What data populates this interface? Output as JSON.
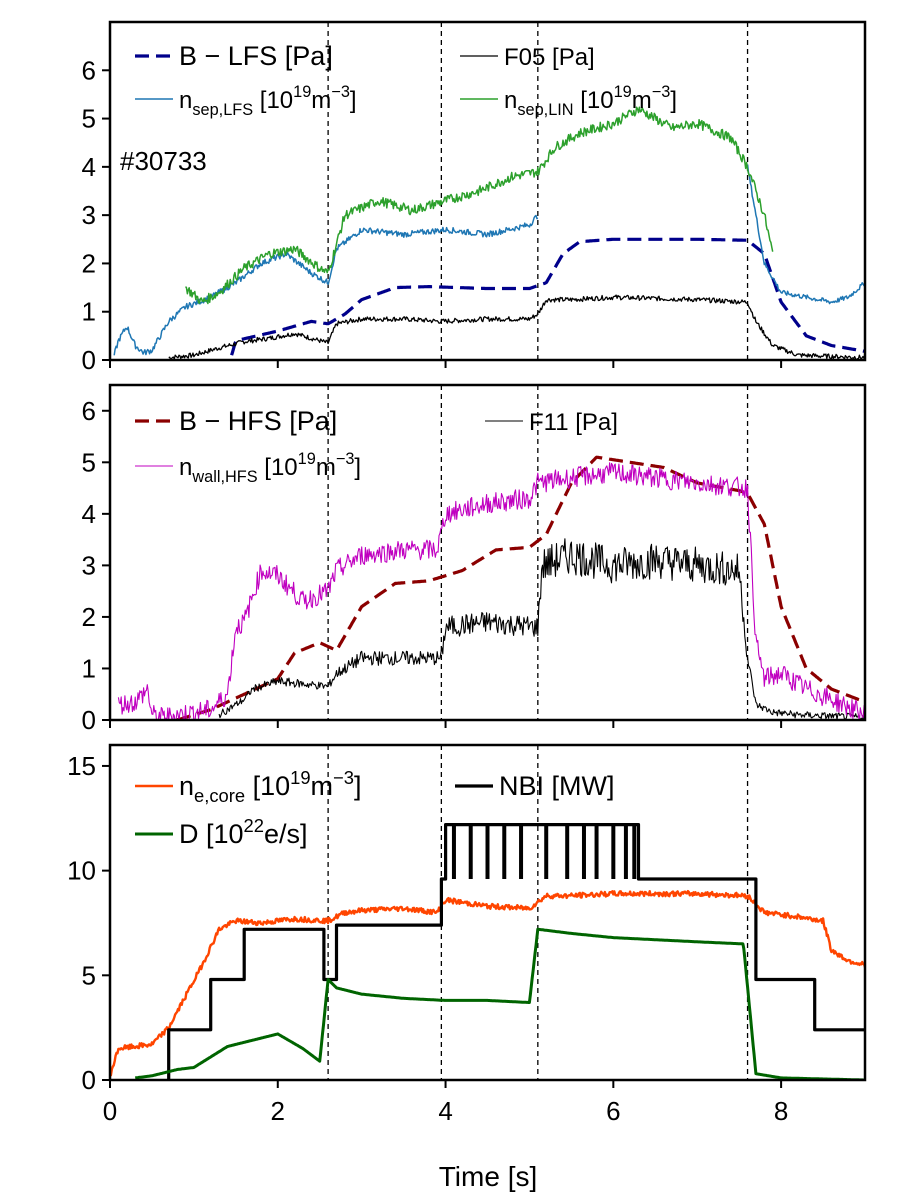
{
  "figure": {
    "xlabel": "Time [s]",
    "shot_label": "#30733",
    "events_s": [
      2.6,
      3.95,
      5.1,
      7.6
    ]
  },
  "chart_data": [
    {
      "type": "line",
      "panel": "top",
      "xlim": [
        0,
        9
      ],
      "ylim": [
        0,
        7
      ],
      "yticks": [
        0,
        1,
        2,
        3,
        4,
        5,
        6
      ],
      "xticks": [
        0,
        2,
        4,
        6,
        8
      ],
      "legend": [
        {
          "label": "B − LFS [Pa]",
          "series": "B-LFS"
        },
        {
          "label": "F05 [Pa]",
          "series": "F05"
        },
        {
          "label": "n",
          "sub": "sep,LFS",
          "tail": " [10",
          "sup": "19",
          "tail2": "m",
          "sup2": "−3",
          "tail3": "]",
          "series": "n_sep_LFS"
        },
        {
          "label": "n",
          "sub": "sep,LIN",
          "tail": " [10",
          "sup": "19",
          "tail2": "m",
          "sup2": "−3",
          "tail3": "]",
          "series": "n_sep_LIN"
        }
      ],
      "series": [
        {
          "key": "B-LFS",
          "color": "#00008b",
          "style": "dashed",
          "width": 3.2,
          "x": [
            1.45,
            1.5,
            2.0,
            2.4,
            2.6,
            2.8,
            3.0,
            3.4,
            3.8,
            4.5,
            5.0,
            5.2,
            5.4,
            5.6,
            6.0,
            7.0,
            7.6,
            7.8,
            8.0,
            8.3,
            8.6,
            9.0
          ],
          "y": [
            0.1,
            0.4,
            0.6,
            0.8,
            0.75,
            0.95,
            1.25,
            1.5,
            1.52,
            1.48,
            1.48,
            1.6,
            2.2,
            2.45,
            2.5,
            2.5,
            2.48,
            2.2,
            1.2,
            0.5,
            0.3,
            0.18
          ]
        },
        {
          "key": "F05",
          "color": "#000000",
          "style": "solid",
          "width": 1.3,
          "noise": 0.05,
          "x": [
            0.7,
            1.0,
            1.3,
            1.6,
            1.9,
            2.2,
            2.6,
            2.7,
            3.0,
            3.5,
            3.95,
            4.5,
            5.0,
            5.1,
            5.2,
            5.5,
            6.0,
            7.0,
            7.6,
            7.7,
            7.9,
            8.2,
            9.0
          ],
          "y": [
            0.05,
            0.1,
            0.25,
            0.38,
            0.45,
            0.55,
            0.35,
            0.75,
            0.85,
            0.85,
            0.8,
            0.85,
            0.85,
            0.95,
            1.25,
            1.25,
            1.3,
            1.25,
            1.2,
            0.8,
            0.3,
            0.1,
            0.05
          ]
        },
        {
          "key": "n_sep_LFS",
          "color": "#1f77b4",
          "style": "solid",
          "width": 1.5,
          "noise": 0.06,
          "x": [
            0.05,
            0.1,
            0.2,
            0.3,
            0.4,
            0.5,
            0.7,
            0.9,
            1.2,
            1.5,
            1.8,
            2.1,
            2.4,
            2.6,
            2.7,
            3.0,
            3.5,
            4.0,
            4.5,
            5.0,
            5.1
          ],
          "y": [
            0.1,
            0.4,
            0.7,
            0.3,
            0.15,
            0.2,
            0.8,
            1.1,
            1.3,
            1.6,
            2.0,
            2.2,
            1.8,
            1.6,
            2.3,
            2.7,
            2.6,
            2.7,
            2.6,
            2.8,
            3.0
          ]
        },
        {
          "key": "n_sep_LFS_tail",
          "color": "#1f77b4",
          "style": "solid",
          "width": 1.5,
          "noise": 0.05,
          "x": [
            7.6,
            7.7,
            7.8,
            8.0,
            8.3,
            8.6,
            8.8,
            9.0
          ],
          "y": [
            4.0,
            3.0,
            2.0,
            1.4,
            1.3,
            1.2,
            1.3,
            1.6
          ]
        },
        {
          "key": "n_sep_LIN",
          "color": "#2ca02c",
          "style": "solid",
          "width": 1.5,
          "noise": 0.1,
          "x": [
            0.9,
            1.1,
            1.3,
            1.6,
            1.9,
            2.2,
            2.5,
            2.6,
            2.8,
            3.2,
            3.6,
            4.0,
            4.4,
            4.8,
            5.1,
            5.3,
            5.6,
            6.0,
            6.3,
            6.7,
            7.0,
            7.4,
            7.6,
            7.8,
            7.9
          ],
          "y": [
            1.5,
            1.2,
            1.4,
            1.9,
            2.2,
            2.3,
            1.9,
            1.8,
            3.0,
            3.3,
            3.1,
            3.3,
            3.5,
            3.8,
            3.9,
            4.4,
            4.7,
            4.9,
            5.2,
            4.8,
            4.9,
            4.6,
            4.0,
            3.0,
            2.2
          ]
        }
      ]
    },
    {
      "type": "line",
      "panel": "middle",
      "xlim": [
        0,
        9
      ],
      "ylim": [
        0,
        6.5
      ],
      "yticks": [
        0,
        1,
        2,
        3,
        4,
        5,
        6
      ],
      "xticks": [
        0,
        2,
        4,
        6,
        8
      ],
      "legend": [
        {
          "label": "B − HFS [Pa]",
          "series": "B-HFS"
        },
        {
          "label": "F11 [Pa]",
          "series": "F11"
        },
        {
          "label": "n",
          "sub": "wall,HFS",
          "tail": " [10",
          "sup": "19",
          "tail2": "m",
          "sup2": "−3",
          "tail3": "]",
          "series": "n_wall_HFS"
        }
      ],
      "series": [
        {
          "key": "B-HFS",
          "color": "#8b0000",
          "style": "dashed",
          "width": 3.2,
          "x": [
            0.8,
            1.2,
            1.6,
            2.0,
            2.2,
            2.5,
            2.7,
            3.0,
            3.4,
            3.8,
            4.2,
            4.6,
            5.0,
            5.2,
            5.5,
            5.8,
            6.2,
            6.6,
            7.0,
            7.5,
            7.6,
            7.8,
            8.0,
            8.3,
            8.6,
            9.0
          ],
          "y": [
            0.0,
            0.2,
            0.5,
            0.8,
            1.3,
            1.5,
            1.35,
            2.2,
            2.65,
            2.7,
            2.9,
            3.3,
            3.35,
            3.6,
            4.6,
            5.1,
            5.0,
            4.9,
            4.6,
            4.45,
            4.4,
            3.8,
            2.2,
            1.0,
            0.6,
            0.35
          ]
        },
        {
          "key": "F11",
          "color": "#000000",
          "style": "solid",
          "width": 1.1,
          "noise": 0.35,
          "x": [
            1.3,
            1.6,
            1.7,
            2.0,
            2.3,
            2.6,
            2.7,
            3.0,
            3.5,
            3.95,
            4.0,
            4.5,
            5.1,
            5.15,
            5.5,
            6.0,
            6.5,
            7.0,
            7.5,
            7.6,
            7.7,
            7.9,
            8.2,
            9.0
          ],
          "y": [
            0.1,
            0.4,
            0.6,
            0.75,
            0.7,
            0.65,
            0.9,
            1.2,
            1.2,
            1.2,
            1.8,
            1.9,
            1.8,
            3.0,
            3.2,
            3.0,
            3.1,
            3.0,
            2.9,
            1.2,
            0.3,
            0.15,
            0.1,
            0.05
          ]
        },
        {
          "key": "n_wall_HFS",
          "color": "#c000c0",
          "style": "solid",
          "width": 1.1,
          "noise": 0.2,
          "x": [
            0.1,
            0.3,
            0.45,
            0.5,
            0.6,
            0.8,
            1.0,
            1.2,
            1.4,
            1.5,
            1.6,
            1.8,
            2.0,
            2.3,
            2.6,
            2.7,
            3.0,
            3.5,
            3.9,
            4.0,
            4.5,
            5.0,
            5.1,
            5.5,
            6.0,
            7.0,
            7.6,
            7.7,
            7.8,
            8.0,
            8.3,
            8.6,
            9.0
          ],
          "y": [
            0.3,
            0.35,
            0.6,
            0.1,
            0.05,
            0.1,
            0.15,
            0.2,
            0.5,
            1.8,
            1.9,
            2.9,
            2.8,
            2.3,
            2.5,
            2.9,
            3.2,
            3.3,
            3.3,
            4.0,
            4.2,
            4.3,
            4.6,
            4.7,
            4.8,
            4.6,
            4.5,
            1.5,
            0.8,
            0.9,
            0.6,
            0.4,
            0.1
          ]
        }
      ]
    },
    {
      "type": "line",
      "panel": "bottom",
      "xlim": [
        0,
        9
      ],
      "ylim": [
        0,
        16
      ],
      "yticks": [
        0,
        5,
        10,
        15
      ],
      "xticks": [
        0,
        2,
        4,
        6,
        8
      ],
      "xticklabels": [
        "0",
        "2",
        "4",
        "6",
        "8"
      ],
      "legend": [
        {
          "label": "n",
          "sub": "e,core",
          "tail": " [10",
          "sup": "19",
          "tail2": "m",
          "sup2": "−3",
          "tail3": "]",
          "series": "n_e_core"
        },
        {
          "label": "NBI [MW]",
          "series": "NBI"
        },
        {
          "label": "D [10",
          "sup": "22",
          "tail": "e/s]",
          "series": "D"
        }
      ],
      "series": [
        {
          "key": "n_e_core",
          "color": "#ff4500",
          "style": "solid",
          "width": 2.4,
          "noise": 0.12,
          "x": [
            0.0,
            0.1,
            0.3,
            0.5,
            0.7,
            0.9,
            1.1,
            1.3,
            1.5,
            1.8,
            2.2,
            2.6,
            2.8,
            3.0,
            3.5,
            3.9,
            4.0,
            4.5,
            5.0,
            5.2,
            5.5,
            6.0,
            7.0,
            7.6,
            7.8,
            8.2,
            8.5,
            8.6,
            8.8,
            9.0
          ],
          "y": [
            0.2,
            1.5,
            1.6,
            1.7,
            2.5,
            4.0,
            5.5,
            7.2,
            7.6,
            7.5,
            7.7,
            7.6,
            8.0,
            8.1,
            8.2,
            8.0,
            8.6,
            8.3,
            8.2,
            8.8,
            8.8,
            8.9,
            8.9,
            8.8,
            8.0,
            7.8,
            7.6,
            6.2,
            5.7,
            5.5
          ]
        },
        {
          "key": "NBI",
          "color": "#000000",
          "style": "step",
          "width": 3.2,
          "x": [
            0.7,
            0.7,
            1.2,
            1.2,
            1.6,
            1.6,
            2.55,
            2.55,
            2.7,
            2.7,
            3.95,
            3.95,
            4.0,
            4.0,
            6.3,
            6.3,
            7.6,
            7.6,
            7.7,
            7.7,
            8.4,
            8.4,
            9.0
          ],
          "y": [
            0.0,
            2.4,
            2.4,
            4.8,
            4.8,
            7.2,
            7.2,
            4.8,
            4.8,
            7.4,
            7.4,
            9.6,
            9.6,
            12.2,
            12.2,
            9.6,
            9.6,
            9.6,
            9.6,
            4.8,
            4.8,
            2.4,
            2.4
          ]
        },
        {
          "key": "D",
          "color": "#006400",
          "style": "solid",
          "width": 3.0,
          "x": [
            0.3,
            0.5,
            0.8,
            1.0,
            1.4,
            1.8,
            2.0,
            2.3,
            2.5,
            2.6,
            2.7,
            3.0,
            3.5,
            4.0,
            4.5,
            5.0,
            5.1,
            5.5,
            6.0,
            7.0,
            7.55,
            7.7,
            8.0,
            9.0
          ],
          "y": [
            0.1,
            0.2,
            0.5,
            0.6,
            1.6,
            2.0,
            2.2,
            1.5,
            0.9,
            4.8,
            4.4,
            4.1,
            3.9,
            3.8,
            3.8,
            3.7,
            7.2,
            7.0,
            6.8,
            6.6,
            6.5,
            0.3,
            0.1,
            0.0
          ]
        }
      ],
      "nbi_spikes_s": [
        4.1,
        4.3,
        4.5,
        4.7,
        4.9,
        5.2,
        5.45,
        5.65,
        5.8,
        6.0,
        6.15,
        6.25
      ]
    }
  ]
}
